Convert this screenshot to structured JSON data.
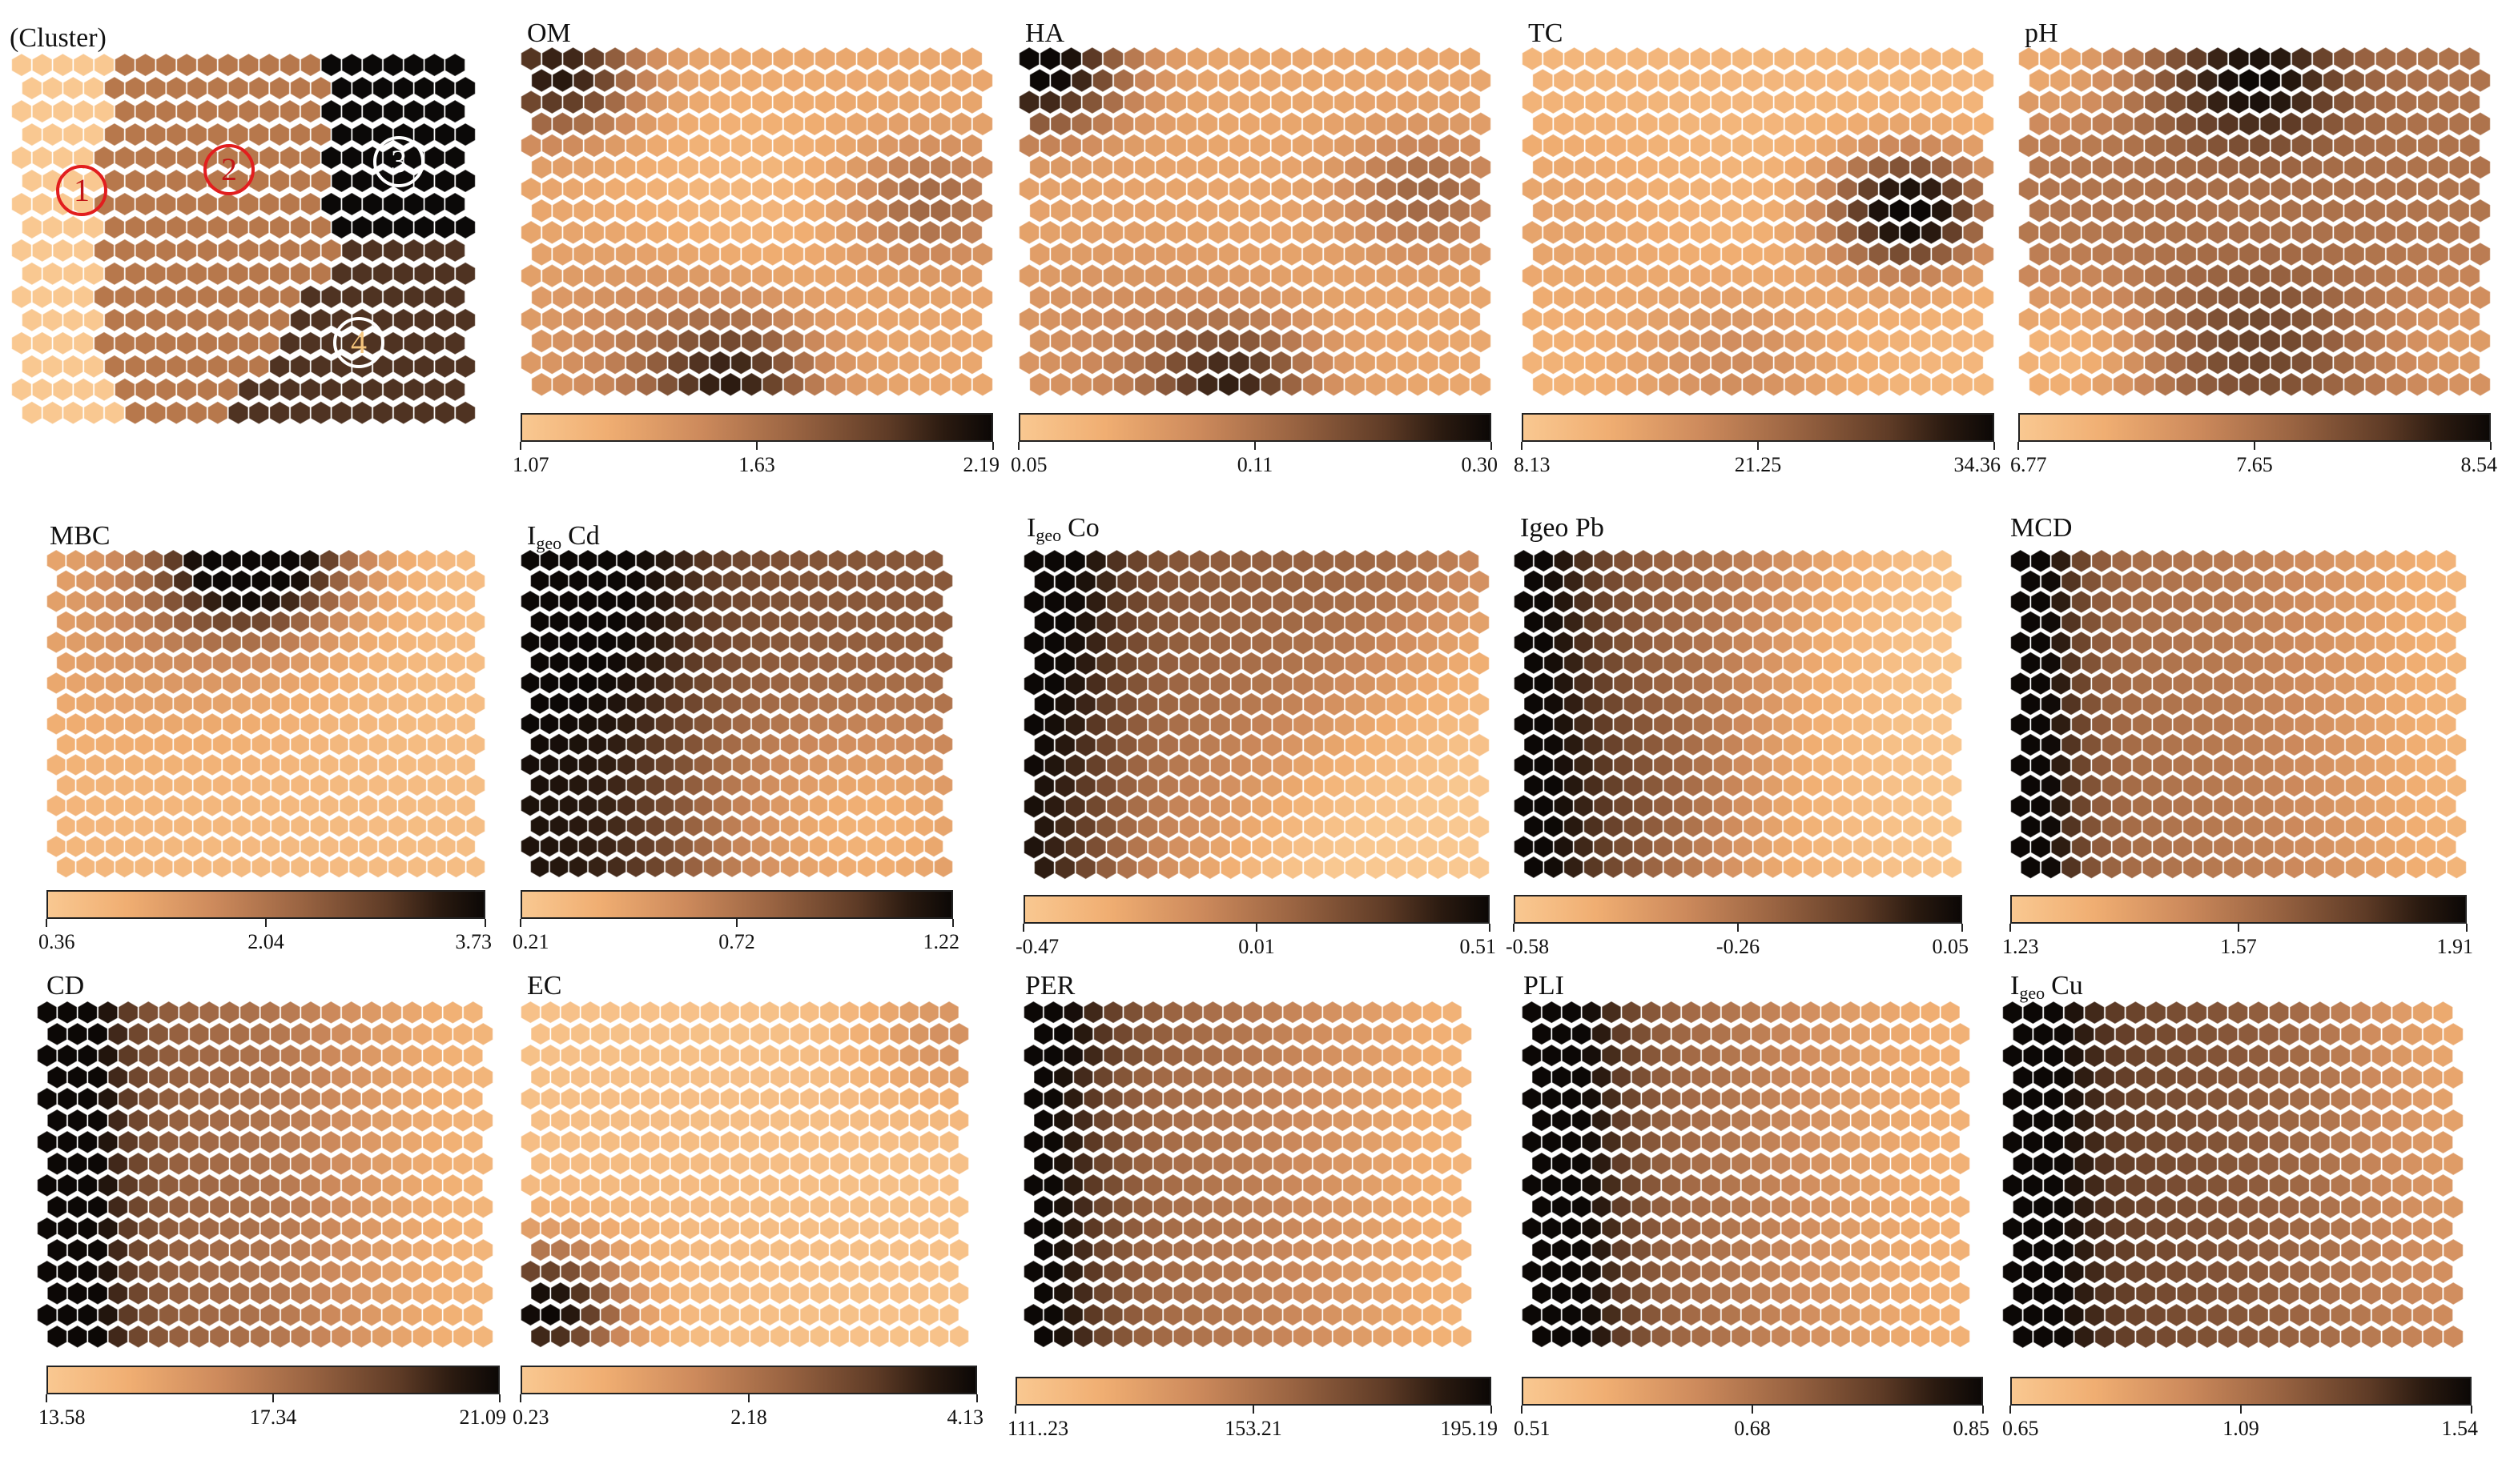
{
  "chart_data": [
    {
      "type": "heatmap",
      "title": "(Cluster)",
      "clusters": [
        {
          "label": "1",
          "color": "#f9c891",
          "ring": "#e21e1e"
        },
        {
          "label": "2",
          "color": "#b7784c",
          "ring": "#e21e1e"
        },
        {
          "label": "3",
          "color": "#0b0908",
          "ring": "#ffffff"
        },
        {
          "label": "4",
          "color": "#4f3322",
          "ring": "#ffffff"
        }
      ]
    },
    {
      "type": "heatmap",
      "title": "OM",
      "subscript": "",
      "colorbar": {
        "min": "1.07",
        "mid": "1.63",
        "max": "2.19"
      }
    },
    {
      "type": "heatmap",
      "title": "HA",
      "subscript": "",
      "colorbar": {
        "min": "0.05",
        "mid": "0.11",
        "max": "0.30"
      }
    },
    {
      "type": "heatmap",
      "title": "TC",
      "subscript": "",
      "colorbar": {
        "min": "8.13",
        "mid": "21.25",
        "max": "34.36"
      }
    },
    {
      "type": "heatmap",
      "title": "pH",
      "subscript": "",
      "colorbar": {
        "min": "6.77",
        "mid": "7.65",
        "max": "8.54"
      }
    },
    {
      "type": "heatmap",
      "title": "MBC",
      "subscript": "",
      "colorbar": {
        "min": "0.36",
        "mid": "2.04",
        "max": "3.73"
      }
    },
    {
      "type": "heatmap",
      "title": "Cd",
      "prefix": "I",
      "subscript": "geo",
      "colorbar": {
        "min": "0.21",
        "mid": "0.72",
        "max": "1.22"
      }
    },
    {
      "type": "heatmap",
      "title": "Co",
      "prefix": "I",
      "subscript": "geo",
      "colorbar": {
        "min": "-0.47",
        "mid": "0.01",
        "max": "0.51"
      }
    },
    {
      "type": "heatmap",
      "title": "Igeo Pb",
      "subscript": "",
      "colorbar": {
        "min": "-0.58",
        "mid": "-0.26",
        "max": "0.05"
      }
    },
    {
      "type": "heatmap",
      "title": "MCD",
      "subscript": "",
      "colorbar": {
        "min": "1.23",
        "mid": "1.57",
        "max": "1.91"
      }
    },
    {
      "type": "heatmap",
      "title": "CD",
      "subscript": "",
      "colorbar": {
        "min": "13.58",
        "mid": "17.34",
        "max": "21.09"
      }
    },
    {
      "type": "heatmap",
      "title": "EC",
      "subscript": "",
      "colorbar": {
        "min": "0.23",
        "mid": "2.18",
        "max": "4.13"
      }
    },
    {
      "type": "heatmap",
      "title": "PER",
      "subscript": "",
      "colorbar": {
        "min": "111..23",
        "mid": "153.21",
        "max": "195.19"
      }
    },
    {
      "type": "heatmap",
      "title": "PLI",
      "subscript": "",
      "colorbar": {
        "min": "0.51",
        "mid": "0.68",
        "max": "0.85"
      }
    },
    {
      "type": "heatmap",
      "title": "Cu",
      "prefix": "I",
      "subscript": "geo",
      "colorbar": {
        "min": "0.65",
        "mid": "1.09",
        "max": "1.54"
      }
    }
  ]
}
